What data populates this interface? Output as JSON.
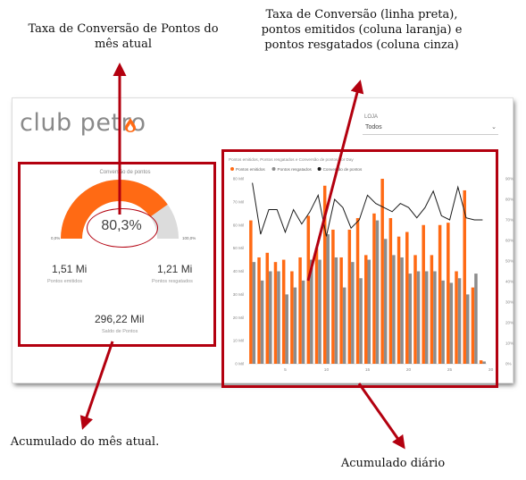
{
  "annotations": {
    "top_left": "Taxa de Conversão de Pontos do mês atual",
    "top_right": "Taxa de Conversão (linha preta), pontos emitidos (coluna laranja) e pontos resgatados (coluna cinza)",
    "bottom_left": "Acumulado do mês atual.",
    "bottom_right": "Acumulado diário"
  },
  "logo": {
    "text": "club petro"
  },
  "slicer": {
    "label": "LOJA",
    "value": "Todos"
  },
  "gauge_card": {
    "title": "Conversão de pontos",
    "value": "80,3%",
    "fill_fraction": 0.803,
    "min_label": "0,0%",
    "max_label": "100,0%",
    "emitidos_value": "1,51 Mi",
    "emitidos_label": "Pontos emitidos",
    "resgatados_value": "1,21 Mi",
    "resgatados_label": "Pontos resgatados",
    "saldo_value": "296,22 Mil",
    "saldo_label": "Saldo de Pontos"
  },
  "colors": {
    "orange": "#ff6a14",
    "gray": "#8c8c8c",
    "line": "#1a1a1a",
    "highlight": "#b3000f",
    "gauge_empty": "#dcdcdc"
  },
  "chart_data": {
    "type": "bar",
    "title": "Pontos emitidos, Pontos resgatados e Conversão de pontos por Day",
    "x": [
      1,
      2,
      3,
      4,
      5,
      6,
      7,
      8,
      9,
      10,
      11,
      12,
      13,
      14,
      15,
      16,
      17,
      18,
      19,
      20,
      21,
      22,
      23,
      24,
      25,
      26,
      27,
      28,
      29
    ],
    "x_ticks": [
      "5",
      "10",
      "15",
      "20",
      "25",
      "30"
    ],
    "y_ticks_left": [
      "0 Mil",
      "10 Mil",
      "20 Mil",
      "30 Mil",
      "40 Mil",
      "50 Mil",
      "60 Mil",
      "70 Mil",
      "80 Mil"
    ],
    "y_ticks_right": [
      "0%",
      "10%",
      "20%",
      "30%",
      "40%",
      "50%",
      "60%",
      "70%",
      "80%",
      "90%"
    ],
    "ylim": [
      0,
      80000
    ],
    "y2lim": [
      0,
      0.9
    ],
    "series": [
      {
        "name": "Pontos emitidos",
        "kind": "bar",
        "values": [
          62000,
          46000,
          48000,
          44000,
          45000,
          40000,
          46000,
          64000,
          50000,
          77000,
          58000,
          46000,
          58000,
          63000,
          47000,
          65000,
          80000,
          63000,
          55000,
          57000,
          47000,
          60000,
          47000,
          60000,
          61000,
          40000,
          75000,
          33000,
          1500
        ]
      },
      {
        "name": "Pontos resgatados",
        "kind": "bar",
        "values": [
          44000,
          36000,
          40000,
          40000,
          30000,
          33000,
          36000,
          45000,
          45000,
          56000,
          46000,
          33000,
          44000,
          37000,
          45000,
          62000,
          54000,
          47000,
          46000,
          39000,
          40000,
          40000,
          40000,
          36000,
          35000,
          37000,
          30000,
          39000,
          1000
        ]
      },
      {
        "name": "Conversão de pontos",
        "kind": "line",
        "values": [
          0.88,
          0.63,
          0.75,
          0.75,
          0.64,
          0.75,
          0.68,
          0.74,
          0.82,
          0.62,
          0.8,
          0.76,
          0.66,
          0.7,
          0.82,
          0.78,
          0.76,
          0.74,
          0.78,
          0.76,
          0.71,
          0.76,
          0.84,
          0.72,
          0.7,
          0.86,
          0.71,
          0.7,
          0.7
        ]
      }
    ]
  }
}
